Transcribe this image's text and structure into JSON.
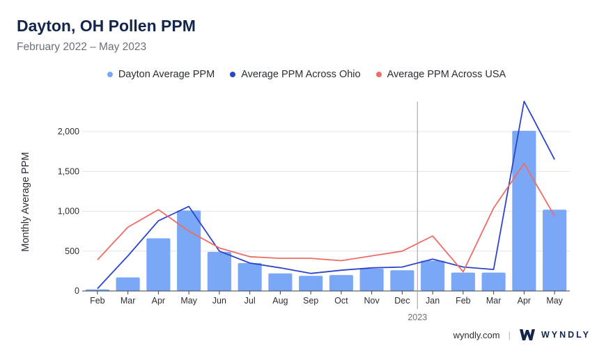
{
  "header": {
    "title": "Dayton, OH Pollen PPM",
    "subtitle": "February 2022 – May 2023"
  },
  "colors": {
    "bar": "#7aa8f7",
    "ohio": "#2c44c9",
    "usa": "#ec6d63",
    "grid": "#e3e4e8",
    "axis": "#3a3d44",
    "divider": "#9a9ca3"
  },
  "chart_data": {
    "type": "bar",
    "title": "Dayton, OH Pollen PPM",
    "ylabel": "Monthly Average PPM",
    "xlabel": "",
    "ylim": [
      0,
      2000
    ],
    "yticks": [
      0,
      500,
      1000,
      1500,
      2000
    ],
    "ytick_labels": [
      "0",
      "500",
      "1,000",
      "1,500",
      "2,000"
    ],
    "categories": [
      "Feb",
      "Mar",
      "Apr",
      "May",
      "Jun",
      "Jul",
      "Aug",
      "Sep",
      "Oct",
      "Nov",
      "Dec",
      "Jan",
      "Feb",
      "Mar",
      "Apr",
      "May"
    ],
    "year_marker": {
      "label": "2023",
      "before_index": 11
    },
    "legend_position": "top-center",
    "series": [
      {
        "name": "Dayton Average PPM",
        "kind": "bar",
        "values": [
          20,
          170,
          660,
          1010,
          490,
          350,
          220,
          190,
          200,
          280,
          260,
          380,
          230,
          230,
          2010,
          1020
        ]
      },
      {
        "name": "Average PPM Across Ohio",
        "kind": "line",
        "values": [
          30,
          440,
          880,
          1060,
          500,
          350,
          290,
          220,
          260,
          290,
          300,
          400,
          300,
          270,
          2380,
          1650
        ]
      },
      {
        "name": "Average PPM Across USA",
        "kind": "line",
        "values": [
          390,
          800,
          1020,
          750,
          540,
          430,
          410,
          410,
          380,
          440,
          500,
          690,
          240,
          1040,
          1600,
          940
        ]
      }
    ]
  },
  "footer": {
    "site": "wyndly.com",
    "separator": "|",
    "brand": "WYNDLY",
    "logo_icon": "w-logo-icon"
  }
}
